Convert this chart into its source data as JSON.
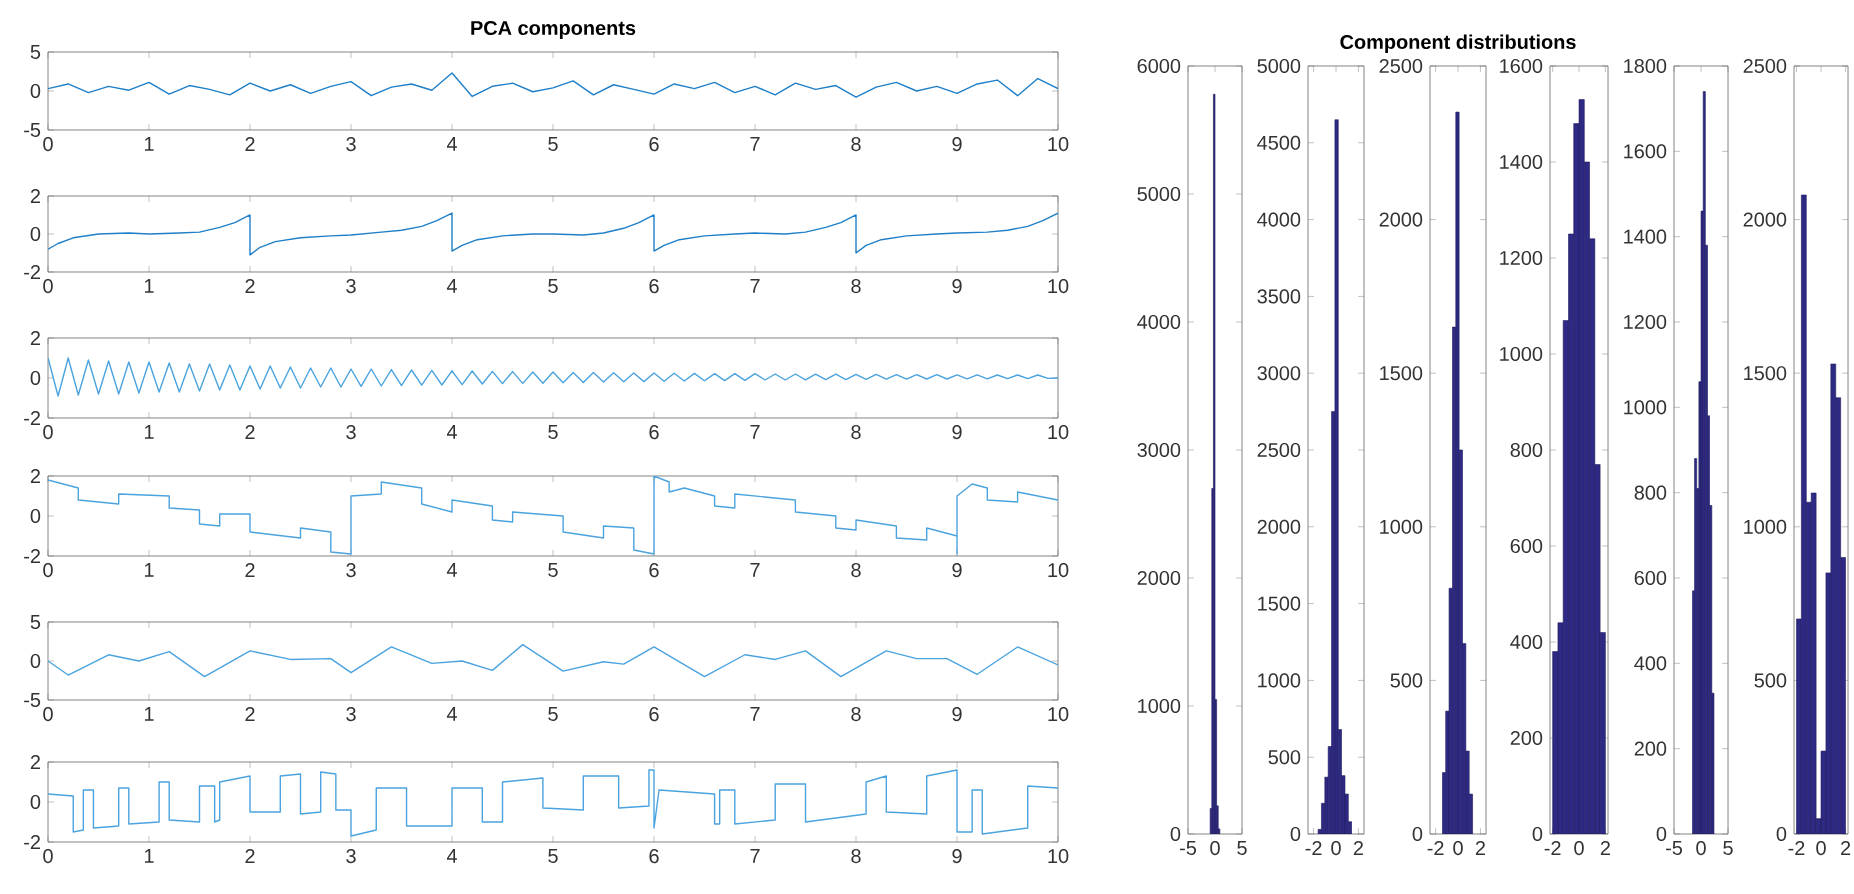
{
  "chart_data": [
    {
      "type": "line",
      "title": "PCA components",
      "color": "#1f7fc8",
      "xlim": [
        0,
        10
      ],
      "ylim": [
        -5,
        5
      ],
      "xticks": [
        0,
        1,
        2,
        3,
        4,
        5,
        6,
        7,
        8,
        9,
        10
      ],
      "yticks": [
        -5,
        0,
        5
      ],
      "x": [
        0,
        0.2,
        0.4,
        0.6,
        0.8,
        1,
        1.2,
        1.4,
        1.6,
        1.8,
        2,
        2.2,
        2.4,
        2.6,
        2.8,
        3,
        3.2,
        3.4,
        3.6,
        3.8,
        4,
        4.2,
        4.4,
        4.6,
        4.8,
        5,
        5.2,
        5.4,
        5.6,
        5.8,
        6,
        6.2,
        6.4,
        6.6,
        6.8,
        7,
        7.2,
        7.4,
        7.6,
        7.8,
        8,
        8.2,
        8.4,
        8.6,
        8.8,
        9,
        9.2,
        9.4,
        9.6,
        9.8,
        10
      ],
      "values": [
        0.3,
        0.9,
        -0.2,
        0.6,
        0.1,
        1.1,
        -0.4,
        0.7,
        0.2,
        -0.5,
        1.0,
        0.0,
        0.8,
        -0.3,
        0.6,
        1.2,
        -0.6,
        0.5,
        0.9,
        0.1,
        2.3,
        -0.7,
        0.6,
        1.0,
        -0.1,
        0.4,
        1.3,
        -0.5,
        0.8,
        0.2,
        -0.4,
        0.9,
        0.3,
        1.1,
        -0.2,
        0.6,
        -0.5,
        1.0,
        0.2,
        0.7,
        -0.8,
        0.5,
        1.1,
        0.0,
        0.6,
        -0.3,
        0.9,
        1.4,
        -0.6,
        1.6,
        0.3
      ]
    },
    {
      "type": "line",
      "color": "#1f7fc8",
      "xlim": [
        0,
        10
      ],
      "ylim": [
        -2,
        2
      ],
      "xticks": [
        0,
        1,
        2,
        3,
        4,
        5,
        6,
        7,
        8,
        9,
        10
      ],
      "yticks": [
        -2,
        0,
        2
      ],
      "x": [
        0,
        0.1,
        0.25,
        0.5,
        0.8,
        1,
        1.3,
        1.5,
        1.7,
        1.85,
        2,
        2,
        2.1,
        2.25,
        2.5,
        2.8,
        3,
        3.3,
        3.5,
        3.7,
        3.85,
        4,
        4,
        4.1,
        4.25,
        4.5,
        4.8,
        5,
        5.3,
        5.5,
        5.7,
        5.85,
        6,
        6,
        6.1,
        6.25,
        6.5,
        6.8,
        7,
        7.3,
        7.5,
        7.7,
        7.85,
        8,
        8,
        8.1,
        8.25,
        8.5,
        8.8,
        9,
        9.3,
        9.5,
        9.7,
        9.85,
        10
      ],
      "values": [
        -0.8,
        -0.5,
        -0.2,
        0,
        0.05,
        0,
        0.05,
        0.1,
        0.35,
        0.6,
        1,
        -1.1,
        -0.7,
        -0.4,
        -0.2,
        -0.1,
        -0.05,
        0.1,
        0.2,
        0.4,
        0.7,
        1.1,
        -0.9,
        -0.6,
        -0.3,
        -0.1,
        0,
        0,
        -0.05,
        0.05,
        0.3,
        0.6,
        1,
        -0.9,
        -0.6,
        -0.3,
        -0.1,
        0,
        0.05,
        0,
        0.1,
        0.35,
        0.6,
        1,
        -1,
        -0.6,
        -0.3,
        -0.1,
        0,
        0.05,
        0.1,
        0.2,
        0.4,
        0.7,
        1.1
      ]
    },
    {
      "type": "line",
      "color": "#4aa3df",
      "xlim": [
        0,
        10
      ],
      "ylim": [
        -2,
        2
      ],
      "xticks": [
        0,
        1,
        2,
        3,
        4,
        5,
        6,
        7,
        8,
        9,
        10
      ],
      "yticks": [
        -2,
        0,
        2
      ],
      "x": [
        0,
        0.1,
        0.2,
        0.3,
        0.4,
        0.5,
        0.6,
        0.7,
        0.8,
        0.9,
        1,
        1.1,
        1.2,
        1.3,
        1.4,
        1.5,
        1.6,
        1.7,
        1.8,
        1.9,
        2,
        2.1,
        2.2,
        2.3,
        2.4,
        2.5,
        2.6,
        2.7,
        2.8,
        2.9,
        3,
        3.1,
        3.2,
        3.3,
        3.4,
        3.5,
        3.6,
        3.7,
        3.8,
        3.9,
        4,
        4.1,
        4.2,
        4.3,
        4.4,
        4.5,
        4.6,
        4.7,
        4.8,
        4.9,
        5,
        5.1,
        5.2,
        5.3,
        5.4,
        5.5,
        5.6,
        5.7,
        5.8,
        5.9,
        6,
        6.1,
        6.2,
        6.3,
        6.4,
        6.5,
        6.6,
        6.7,
        6.8,
        6.9,
        7,
        7.1,
        7.2,
        7.3,
        7.4,
        7.5,
        7.6,
        7.7,
        7.8,
        7.9,
        8,
        8.1,
        8.2,
        8.3,
        8.4,
        8.5,
        8.6,
        8.7,
        8.8,
        8.9,
        9,
        9.1,
        9.2,
        9.3,
        9.4,
        9.5,
        9.6,
        9.7,
        9.8,
        9.9,
        10
      ],
      "values": [
        1.0,
        -0.9,
        1.0,
        -0.85,
        0.9,
        -0.8,
        0.85,
        -0.8,
        0.8,
        -0.75,
        0.8,
        -0.7,
        0.75,
        -0.7,
        0.7,
        -0.65,
        0.7,
        -0.6,
        0.65,
        -0.6,
        0.6,
        -0.55,
        0.6,
        -0.5,
        0.55,
        -0.5,
        0.5,
        -0.45,
        0.5,
        -0.45,
        0.45,
        -0.42,
        0.45,
        -0.4,
        0.42,
        -0.38,
        0.4,
        -0.36,
        0.38,
        -0.35,
        0.36,
        -0.33,
        0.35,
        -0.3,
        0.33,
        -0.28,
        0.32,
        -0.27,
        0.3,
        -0.26,
        0.3,
        -0.24,
        0.28,
        -0.22,
        0.27,
        -0.2,
        0.26,
        -0.19,
        0.25,
        -0.18,
        0.25,
        -0.16,
        0.24,
        -0.15,
        0.23,
        -0.14,
        0.22,
        -0.13,
        0.22,
        -0.12,
        0.22,
        -0.1,
        0.2,
        -0.1,
        0.2,
        -0.09,
        0.19,
        -0.08,
        0.19,
        -0.08,
        0.18,
        -0.07,
        0.18,
        -0.06,
        0.17,
        -0.06,
        0.17,
        -0.05,
        0.17,
        -0.05,
        0.16,
        -0.04,
        0.16,
        -0.04,
        0.15,
        -0.03,
        0.15,
        -0.03,
        0.15,
        -0.02,
        0.0
      ]
    },
    {
      "type": "line",
      "color": "#4aa3df",
      "xlim": [
        0,
        10
      ],
      "ylim": [
        -2,
        2
      ],
      "xticks": [
        0,
        1,
        2,
        3,
        4,
        5,
        6,
        7,
        8,
        9,
        10
      ],
      "yticks": [
        -2,
        0,
        2
      ],
      "x": [
        0,
        0.3,
        0.3,
        0.7,
        0.7,
        1.2,
        1.2,
        1.5,
        1.5,
        1.7,
        1.7,
        2,
        2,
        2.5,
        2.5,
        2.8,
        2.8,
        3,
        3,
        3.3,
        3.3,
        3.7,
        3.7,
        4,
        4,
        4.4,
        4.4,
        4.6,
        4.6,
        5.1,
        5.1,
        5.5,
        5.5,
        5.8,
        5.8,
        6,
        6,
        6.15,
        6.15,
        6.3,
        6.6,
        6.6,
        6.8,
        6.8,
        7.4,
        7.4,
        7.8,
        7.8,
        8,
        8,
        8.4,
        8.4,
        8.7,
        8.7,
        9,
        9,
        9,
        9.15,
        9.3,
        9.3,
        9.6,
        9.6,
        10
      ],
      "values": [
        1.8,
        1.4,
        0.8,
        0.6,
        1.1,
        1.0,
        0.4,
        0.3,
        -0.4,
        -0.5,
        0.1,
        0.1,
        -0.8,
        -1.1,
        -0.6,
        -0.8,
        -1.8,
        -1.9,
        1,
        1.1,
        1.7,
        1.4,
        0.6,
        0.2,
        0.8,
        0.5,
        -0.2,
        -0.3,
        0.2,
        0,
        -0.8,
        -1.1,
        -0.5,
        -0.6,
        -1.7,
        -1.9,
        2,
        1.7,
        1.2,
        1.4,
        1,
        0.5,
        0.4,
        1.1,
        0.8,
        0.2,
        0,
        -0.6,
        -0.7,
        -0.2,
        -0.5,
        -1.1,
        -1.2,
        -0.6,
        -1,
        -1.9,
        1,
        1.6,
        1.4,
        0.8,
        0.7,
        1.2,
        0.8
      ]
    },
    {
      "type": "line",
      "color": "#4aa3df",
      "xlim": [
        0,
        10
      ],
      "ylim": [
        -5,
        5
      ],
      "xticks": [
        0,
        1,
        2,
        3,
        4,
        5,
        6,
        7,
        8,
        9,
        10
      ],
      "yticks": [
        -5,
        0,
        5
      ],
      "x": [
        0,
        0.2,
        0.6,
        0.9,
        1.2,
        1.55,
        2,
        2.4,
        2.8,
        3,
        3.4,
        3.8,
        4.1,
        4.4,
        4.7,
        5.1,
        5.5,
        5.7,
        6,
        6.5,
        6.9,
        7.2,
        7.5,
        7.85,
        8.3,
        8.6,
        8.9,
        9.2,
        9.6,
        10
      ],
      "values": [
        0,
        -1.8,
        0.8,
        0,
        1.2,
        -2,
        1.3,
        0.2,
        0.3,
        -1.5,
        1.8,
        -0.3,
        0,
        -1.2,
        2.1,
        -1.3,
        -0.1,
        -0.4,
        1.8,
        -2,
        0.8,
        0.2,
        1.3,
        -2,
        1.3,
        0.3,
        0.3,
        -1.7,
        1.8,
        -0.5
      ]
    },
    {
      "type": "line",
      "color": "#4aa3df",
      "xlim": [
        0,
        10
      ],
      "ylim": [
        -2,
        2
      ],
      "xticks": [
        0,
        1,
        2,
        3,
        4,
        5,
        6,
        7,
        8,
        9,
        10
      ],
      "yticks": [
        -2,
        0,
        2
      ],
      "x": [
        0,
        0.25,
        0.25,
        0.35,
        0.35,
        0.45,
        0.45,
        0.7,
        0.7,
        0.8,
        0.8,
        1.1,
        1.1,
        1.2,
        1.2,
        1.5,
        1.5,
        1.65,
        1.65,
        1.7,
        1.7,
        2.0,
        2.0,
        2.3,
        2.3,
        2.5,
        2.5,
        2.7,
        2.7,
        2.85,
        2.85,
        3.0,
        3.0,
        3.25,
        3.25,
        3.55,
        3.55,
        4.0,
        4.0,
        4.3,
        4.3,
        4.5,
        4.5,
        4.9,
        4.9,
        5.3,
        5.3,
        5.65,
        5.65,
        5.95,
        5.95,
        6.0,
        6.0,
        6.05,
        6.6,
        6.6,
        6.65,
        6.65,
        6.8,
        6.8,
        7.2,
        7.2,
        7.5,
        7.5,
        8.1,
        8.1,
        8.3,
        8.3,
        8.7,
        8.7,
        9.0,
        9.0,
        9.15,
        9.15,
        9.25,
        9.25,
        9.7,
        9.7,
        10.0
      ],
      "values": [
        0.4,
        0.3,
        -1.5,
        -1.4,
        0.6,
        0.6,
        -1.3,
        -1.2,
        0.7,
        0.7,
        -1.1,
        -1.0,
        1.0,
        1.0,
        -0.9,
        -1.0,
        0.8,
        0.8,
        -1.0,
        -0.9,
        1.0,
        1.3,
        -0.5,
        -0.5,
        1.3,
        1.4,
        -0.6,
        -0.5,
        1.5,
        1.4,
        -0.4,
        -0.4,
        -1.7,
        -1.4,
        0.7,
        0.7,
        -1.2,
        -1.2,
        0.7,
        0.7,
        -1.0,
        -1.0,
        1.0,
        1.2,
        -0.3,
        -0.4,
        1.3,
        1.3,
        -0.3,
        -0.2,
        1.6,
        1.6,
        -1.3,
        0.6,
        0.4,
        -1.1,
        -1.1,
        0.6,
        0.6,
        -1.1,
        -0.9,
        0.9,
        0.9,
        -1.0,
        -0.6,
        1.0,
        1.3,
        -0.5,
        -0.6,
        1.3,
        1.6,
        -1.5,
        -1.5,
        0.6,
        0.6,
        -1.6,
        -1.3,
        0.8,
        0.7
      ]
    },
    {
      "type": "histogram",
      "color": "#2e2a84",
      "xlim": [
        -5,
        5
      ],
      "ylim": [
        0,
        6000
      ],
      "xticks": [
        -5,
        0,
        5
      ],
      "yticks": [
        0,
        1000,
        2000,
        3000,
        4000,
        5000,
        6000
      ],
      "bins": [
        -0.9,
        -0.6,
        -0.3,
        0,
        0.3,
        0.6,
        0.9
      ],
      "values": [
        200,
        2700,
        5780,
        1050,
        220,
        40
      ]
    },
    {
      "type": "histogram",
      "color": "#2e2a84",
      "xlim": [
        -2.5,
        2.5
      ],
      "ylim": [
        0,
        5000
      ],
      "xticks": [
        -2,
        0,
        2
      ],
      "yticks": [
        0,
        500,
        1000,
        1500,
        2000,
        2500,
        3000,
        3500,
        4000,
        4500,
        5000
      ],
      "bins": [
        -1.6,
        -1.3,
        -1,
        -0.7,
        -0.4,
        -0.1,
        0.2,
        0.5,
        0.8,
        1.1,
        1.4
      ],
      "values": [
        30,
        200,
        370,
        570,
        2750,
        4650,
        680,
        380,
        260,
        80
      ]
    },
    {
      "type": "histogram",
      "title": "Component distributions",
      "color": "#2e2a84",
      "xlim": [
        -2.5,
        2.5
      ],
      "ylim": [
        0,
        2500
      ],
      "xticks": [
        -2,
        0,
        2
      ],
      "yticks": [
        0,
        500,
        1000,
        1500,
        2000,
        2500
      ],
      "bins": [
        -1.4,
        -1.1,
        -0.8,
        -0.5,
        -0.2,
        0.1,
        0.4,
        0.7,
        1.0,
        1.3
      ],
      "values": [
        200,
        400,
        800,
        1650,
        2350,
        1250,
        620,
        270,
        130
      ]
    },
    {
      "type": "histogram",
      "color": "#2e2a84",
      "xlim": [
        -2.2,
        2.2
      ],
      "ylim": [
        0,
        1600
      ],
      "xticks": [
        -2,
        0,
        2
      ],
      "yticks": [
        0,
        200,
        400,
        600,
        800,
        1000,
        1200,
        1400,
        1600
      ],
      "bins": [
        -2,
        -1.6,
        -1.2,
        -0.8,
        -0.4,
        0,
        0.4,
        0.8,
        1.2,
        1.6,
        2
      ],
      "values": [
        380,
        440,
        1070,
        1250,
        1480,
        1530,
        1400,
        1240,
        770,
        420
      ]
    },
    {
      "type": "histogram",
      "color": "#2e2a84",
      "xlim": [
        -5,
        5
      ],
      "ylim": [
        0,
        1800
      ],
      "xticks": [
        -5,
        0,
        5
      ],
      "yticks": [
        0,
        200,
        400,
        600,
        800,
        1000,
        1200,
        1400,
        1600,
        1800
      ],
      "bins": [
        -1.6,
        -1.2,
        -0.8,
        -0.4,
        0,
        0.4,
        0.8,
        1.2,
        1.6,
        2,
        2.4
      ],
      "values": [
        570,
        880,
        810,
        1060,
        1460,
        1740,
        1380,
        980,
        770,
        330
      ]
    },
    {
      "type": "histogram",
      "color": "#2e2a84",
      "xlim": [
        -2.2,
        2.2
      ],
      "ylim": [
        0,
        2500
      ],
      "xticks": [
        -2,
        0,
        2
      ],
      "yticks": [
        0,
        500,
        1000,
        1500,
        2000,
        2500
      ],
      "bins": [
        -2,
        -1.6,
        -1.2,
        -0.8,
        -0.4,
        0,
        0.4,
        0.8,
        1.2,
        1.6,
        2
      ],
      "values": [
        700,
        2080,
        1080,
        1110,
        50,
        270,
        850,
        1530,
        1420,
        900
      ]
    }
  ]
}
